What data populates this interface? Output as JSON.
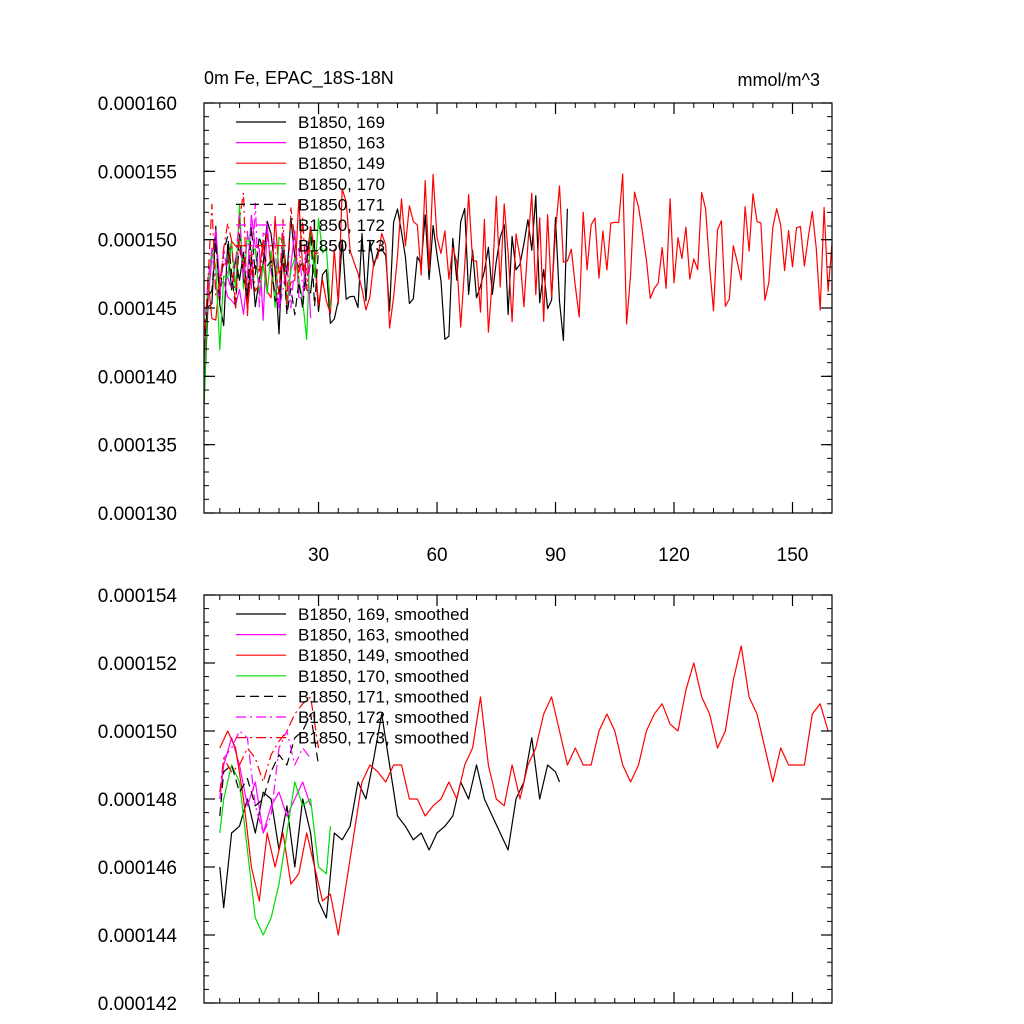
{
  "chart_data": [
    {
      "type": "line",
      "title": "0m Fe, EPAC_18S-18N",
      "units": "mmol/m^3",
      "xlim": [
        1,
        160
      ],
      "ylim": [
        0.00013,
        0.00016
      ],
      "x_ticks": [
        30,
        60,
        90,
        120,
        150
      ],
      "x_tick_labels": [
        "30",
        "60",
        "90",
        "120",
        "150"
      ],
      "y_ticks": [
        0.00013,
        0.000135,
        0.00014,
        0.000145,
        0.00015,
        0.000155,
        0.00016
      ],
      "y_tick_labels": [
        "0.000130",
        "0.000135",
        "0.000140",
        "0.000145",
        "0.000150",
        "0.000155",
        "0.000160"
      ],
      "grid": false,
      "legend": "top-left",
      "series": [
        {
          "name": "B1850, 169",
          "color": "#000000",
          "dash": "solid",
          "x_start": 1,
          "x_end": 93,
          "seed": 11,
          "start": 0.000137,
          "level": 0.000148,
          "amp": 4.2e-06,
          "lo": 0.000138,
          "hi": 0.000154
        },
        {
          "name": "B1850, 163",
          "color": "#ff00ff",
          "dash": "solid",
          "x_start": 1,
          "x_end": 28,
          "seed": 23,
          "start": 0.000136,
          "level": 0.000148,
          "amp": 4e-06,
          "lo": 0.000141,
          "hi": 0.000158
        },
        {
          "name": "B1850, 149",
          "color": "#ff0000",
          "dash": "solid",
          "x_start": 1,
          "x_end": 160,
          "seed": 37,
          "start": 0.000138,
          "level": 0.000149,
          "amp": 4.5e-06,
          "lo": 0.000138,
          "hi": 0.000159
        },
        {
          "name": "B1850, 170",
          "color": "#00dd00",
          "dash": "solid",
          "x_start": 1,
          "x_end": 33,
          "seed": 41,
          "start": 0.000131,
          "level": 0.000147,
          "amp": 4.2e-06,
          "lo": 0.000138,
          "hi": 0.000155
        },
        {
          "name": "B1850, 171",
          "color": "#000000",
          "dash": "dash",
          "x_start": 1,
          "x_end": 30,
          "seed": 53,
          "start": 0.000137,
          "level": 0.000149,
          "amp": 4e-06,
          "lo": 0.000142,
          "hi": 0.000156
        },
        {
          "name": "B1850, 172",
          "color": "#ff00ff",
          "dash": "dashdot",
          "x_start": 1,
          "x_end": 28,
          "seed": 67,
          "start": 0.000137,
          "level": 0.000149,
          "amp": 3.5e-06,
          "lo": 0.000143,
          "hi": 0.000156
        },
        {
          "name": "B1850, 173",
          "color": "#ff0000",
          "dash": "dashdot",
          "x_start": 1,
          "x_end": 30,
          "seed": 79,
          "start": 0.000138,
          "level": 0.000149,
          "amp": 4e-06,
          "lo": 0.000142,
          "hi": 0.000159
        }
      ]
    },
    {
      "type": "line",
      "title": "",
      "xlim": [
        1,
        160
      ],
      "ylim": [
        0.000142,
        0.000154
      ],
      "x_ticks": [
        30,
        60,
        90,
        120,
        150
      ],
      "x_tick_labels": [],
      "y_ticks": [
        0.000142,
        0.000144,
        0.000146,
        0.000148,
        0.00015,
        0.000152,
        0.000154
      ],
      "y_tick_labels": [
        "0.000142",
        "0.000144",
        "0.000146",
        "0.000148",
        "0.000150",
        "0.000152",
        "0.000154"
      ],
      "grid": false,
      "legend": "top-left",
      "series": [
        {
          "name": "B1850, 169, smoothed",
          "color": "#000000",
          "dash": "solid",
          "x": [
            5,
            6,
            8,
            10,
            12,
            14,
            16,
            18,
            20,
            22,
            24,
            26,
            28,
            30,
            32,
            34,
            36,
            38,
            40,
            42,
            44,
            46,
            48,
            50,
            52,
            54,
            56,
            58,
            60,
            62,
            64,
            66,
            68,
            70,
            72,
            74,
            76,
            78,
            80,
            82,
            84,
            86,
            88,
            90,
            91
          ],
          "y": [
            0.000146,
            0.0001448,
            0.000147,
            0.0001472,
            0.000148,
            0.000147,
            0.0001482,
            0.000148,
            0.0001465,
            0.0001478,
            0.000146,
            0.000148,
            0.000147,
            0.000145,
            0.0001445,
            0.000147,
            0.0001468,
            0.0001472,
            0.0001485,
            0.000148,
            0.0001492,
            0.0001505,
            0.000149,
            0.0001475,
            0.0001472,
            0.0001468,
            0.000147,
            0.0001465,
            0.000147,
            0.0001472,
            0.0001475,
            0.0001485,
            0.000148,
            0.000149,
            0.000148,
            0.0001475,
            0.000147,
            0.0001465,
            0.000148,
            0.0001485,
            0.0001498,
            0.000148,
            0.000149,
            0.0001488,
            0.0001485
          ]
        },
        {
          "name": "B1850, 163, smoothed",
          "color": "#ff00ff",
          "dash": "solid",
          "x": [
            5,
            6,
            8,
            10,
            12,
            14,
            16,
            18,
            20,
            22,
            24,
            26,
            28
          ],
          "y": [
            0.000148,
            0.000149,
            0.0001498,
            0.000149,
            0.0001478,
            0.0001485,
            0.000147,
            0.0001478,
            0.0001482,
            0.0001475,
            0.000148,
            0.0001485,
            0.0001478
          ]
        },
        {
          "name": "B1850, 149, smoothed",
          "color": "#ff0000",
          "dash": "solid",
          "x": [
            5,
            7,
            9,
            11,
            13,
            15,
            17,
            19,
            21,
            23,
            25,
            27,
            29,
            31,
            33,
            35,
            37,
            39,
            41,
            43,
            45,
            47,
            49,
            51,
            53,
            55,
            57,
            59,
            61,
            63,
            65,
            67,
            69,
            71,
            73,
            75,
            77,
            79,
            81,
            83,
            85,
            87,
            89,
            91,
            93,
            95,
            97,
            99,
            101,
            103,
            105,
            107,
            109,
            111,
            113,
            115,
            117,
            119,
            121,
            123,
            125,
            127,
            129,
            131,
            133,
            135,
            137,
            139,
            141,
            143,
            145,
            147,
            149,
            151,
            153,
            155,
            157,
            159
          ],
          "y": [
            0.0001495,
            0.00015,
            0.0001495,
            0.000148,
            0.000146,
            0.000145,
            0.000147,
            0.000146,
            0.000147,
            0.0001455,
            0.0001458,
            0.000147,
            0.000146,
            0.000145,
            0.0001452,
            0.000144,
            0.0001455,
            0.000147,
            0.0001485,
            0.000149,
            0.0001488,
            0.0001485,
            0.000149,
            0.000149,
            0.000148,
            0.000148,
            0.0001475,
            0.0001478,
            0.000148,
            0.0001485,
            0.000148,
            0.000149,
            0.0001495,
            0.000151,
            0.000149,
            0.000148,
            0.0001478,
            0.000149,
            0.000148,
            0.000149,
            0.0001495,
            0.0001505,
            0.000151,
            0.00015,
            0.000149,
            0.0001495,
            0.000149,
            0.000149,
            0.00015,
            0.0001505,
            0.00015,
            0.000149,
            0.0001485,
            0.000149,
            0.00015,
            0.0001505,
            0.0001508,
            0.0001502,
            0.00015,
            0.0001512,
            0.000152,
            0.000151,
            0.0001505,
            0.0001495,
            0.00015,
            0.0001515,
            0.0001525,
            0.000151,
            0.0001505,
            0.0001495,
            0.0001485,
            0.0001495,
            0.000149,
            0.000149,
            0.000149,
            0.0001505,
            0.0001508,
            0.00015
          ]
        },
        {
          "name": "B1850, 170, smoothed",
          "color": "#00dd00",
          "dash": "solid",
          "x": [
            5,
            6,
            8,
            10,
            12,
            14,
            16,
            18,
            20,
            22,
            24,
            26,
            28,
            30,
            32,
            33
          ],
          "y": [
            0.000147,
            0.000148,
            0.000149,
            0.0001485,
            0.0001465,
            0.0001445,
            0.000144,
            0.0001445,
            0.0001455,
            0.000147,
            0.0001485,
            0.0001478,
            0.000148,
            0.000146,
            0.0001458,
            0.0001472
          ]
        },
        {
          "name": "B1850, 171, smoothed",
          "color": "#000000",
          "dash": "dash",
          "x": [
            5,
            6,
            8,
            10,
            12,
            14,
            16,
            18,
            20,
            22,
            24,
            26,
            28,
            30
          ],
          "y": [
            0.0001475,
            0.0001488,
            0.000149,
            0.0001482,
            0.0001486,
            0.0001478,
            0.000148,
            0.0001488,
            0.0001493,
            0.000149,
            0.0001498,
            0.00015,
            0.0001505,
            0.000149
          ]
        },
        {
          "name": "B1850, 172, smoothed",
          "color": "#ff00ff",
          "dash": "dashdot",
          "x": [
            5,
            6,
            8,
            10,
            12,
            14,
            16,
            18,
            20,
            22,
            24,
            26,
            28
          ],
          "y": [
            0.000148,
            0.0001492,
            0.0001495,
            0.00015,
            0.0001498,
            0.0001478,
            0.000147,
            0.0001475,
            0.0001495,
            0.00015,
            0.000149,
            0.0001495,
            0.0001492
          ]
        },
        {
          "name": "B1850, 173, smoothed",
          "color": "#ff0000",
          "dash": "dashdot",
          "x": [
            5,
            6,
            8,
            10,
            12,
            14,
            16,
            18,
            20,
            22,
            24,
            26,
            28,
            30
          ],
          "y": [
            0.0001482,
            0.0001492,
            0.0001488,
            0.000149,
            0.0001495,
            0.0001492,
            0.0001485,
            0.0001493,
            0.0001497,
            0.00015,
            0.0001505,
            0.0001508,
            0.000151,
            0.0001495
          ]
        }
      ]
    }
  ]
}
